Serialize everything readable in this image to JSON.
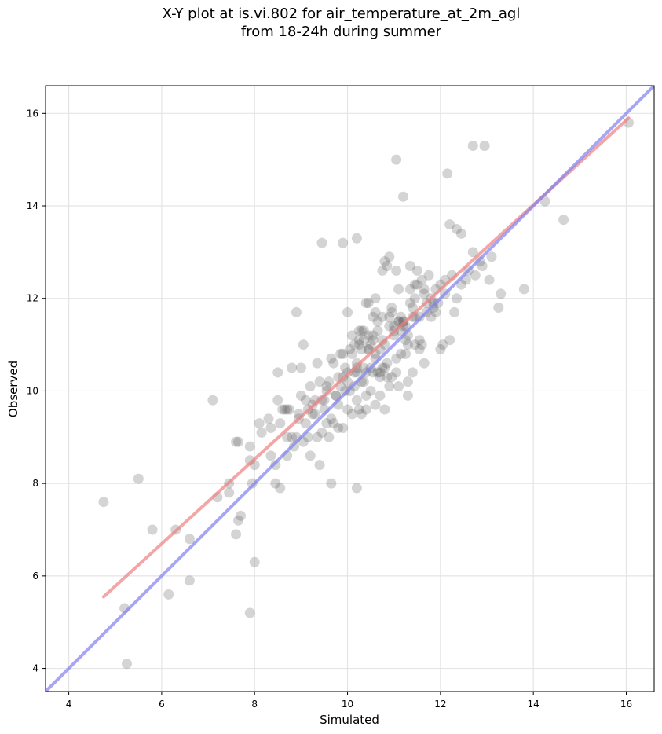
{
  "chart_data": {
    "type": "scatter",
    "title_lines": [
      "X-Y plot at is.vi.802 for air_temperature_at_2m_agl",
      "from 18-24h during summer"
    ],
    "xlabel": "Simulated",
    "ylabel": "Observed",
    "xlim": [
      3.5,
      16.6
    ],
    "ylim": [
      3.5,
      16.6
    ],
    "xticks": [
      4,
      6,
      8,
      10,
      12,
      14,
      16
    ],
    "yticks": [
      4,
      6,
      8,
      10,
      12,
      14,
      16
    ],
    "grid": true,
    "colors": {
      "points": "#555555",
      "fit_line": "#f08080",
      "identity_line": "#8080f0"
    },
    "fit_line": {
      "x": [
        4.75,
        16.05
      ],
      "y": [
        5.55,
        15.9
      ]
    },
    "identity_line": {
      "x": [
        3.5,
        16.6
      ],
      "y": [
        3.5,
        16.6
      ]
    },
    "points": {
      "x": [
        4.75,
        5.5,
        5.2,
        5.25,
        5.8,
        6.15,
        6.3,
        6.6,
        6.6,
        7.1,
        7.2,
        7.45,
        7.45,
        7.6,
        7.65,
        7.6,
        7.65,
        7.7,
        7.9,
        7.9,
        7.95,
        8.0,
        8.0,
        7.9,
        10.2,
        9.65,
        9.45,
        9.9,
        10.2,
        11.05,
        11.2,
        12.15,
        12.2,
        12.35,
        12.45,
        12.7,
        12.9,
        13.25,
        13.8,
        14.25,
        14.65,
        16.05,
        12.7,
        12.95,
        8.1,
        8.15,
        8.3,
        8.35,
        8.45,
        8.5,
        8.55,
        8.6,
        8.7,
        8.75,
        8.8,
        8.85,
        8.9,
        8.95,
        8.5,
        8.8,
        8.9,
        9.0,
        9.05,
        8.45,
        8.55,
        8.7,
        9.1,
        9.15,
        9.2,
        9.25,
        9.3,
        9.35,
        9.4,
        9.45,
        9.5,
        9.55,
        9.6,
        9.65,
        9.7,
        9.75,
        9.8,
        9.85,
        9.9,
        9.95,
        9.2,
        9.4,
        9.6,
        9.8,
        10.0,
        10.05,
        10.1,
        10.15,
        10.2,
        10.25,
        10.3,
        10.35,
        10.4,
        10.45,
        10.5,
        10.55,
        10.6,
        10.65,
        10.7,
        10.75,
        10.8,
        10.85,
        10.9,
        10.95,
        10.1,
        10.3,
        10.5,
        10.7,
        10.9,
        10.2,
        10.4,
        10.6,
        10.8,
        10.0,
        10.3,
        10.6,
        10.9,
        10.15,
        10.45,
        10.75,
        10.25,
        10.55,
        10.85,
        10.35,
        11.0,
        11.05,
        11.1,
        11.15,
        11.2,
        11.25,
        11.3,
        11.35,
        11.4,
        11.45,
        11.5,
        11.55,
        11.6,
        11.65,
        11.7,
        11.75,
        11.8,
        11.85,
        11.9,
        11.95,
        11.0,
        11.2,
        11.4,
        11.6,
        11.1,
        11.3,
        11.5,
        11.7,
        11.05,
        11.25,
        11.45,
        11.15,
        11.35,
        11.55,
        12.0,
        12.05,
        12.1,
        12.25,
        12.3,
        12.35,
        12.6,
        12.85,
        13.05,
        12.0,
        11.9,
        12.2,
        9.0,
        9.3,
        9.7,
        9.9,
        10.1,
        10.4,
        10.8,
        11.3,
        9.5,
        9.8,
        10.0,
        10.3,
        10.6,
        11.1,
        11.4,
        8.7,
        9.1,
        9.45,
        10.2,
        10.7,
        9.55,
        9.75,
        9.95,
        10.15,
        10.35,
        10.55,
        10.75,
        10.95,
        11.15,
        9.35,
        9.65,
        9.85,
        10.05,
        10.25,
        10.45,
        10.65,
        10.85,
        11.05,
        11.25,
        11.45,
        10.6,
        10.8,
        11.0,
        11.2,
        10.4,
        10.9,
        11.3,
        10.2,
        10.7,
        11.1,
        10.5,
        10.0,
        9.9,
        10.35,
        10.65,
        10.95,
        11.35,
        11.65,
        12.1,
        11.8,
        8.95,
        9.25,
        9.05,
        9.55,
        9.15,
        8.65,
        8.35,
        10.45,
        10.75,
        11.55,
        11.85,
        12.45,
        12.75,
        12.55,
        13.1,
        13.3,
        11.45,
        11.65,
        10.55,
        10.25
      ],
      "y": [
        7.6,
        8.1,
        5.3,
        4.1,
        7.0,
        5.6,
        7.0,
        6.8,
        5.9,
        9.8,
        7.7,
        7.8,
        8.0,
        8.9,
        7.2,
        6.9,
        8.9,
        7.3,
        8.8,
        5.2,
        8.0,
        6.3,
        8.4,
        8.5,
        7.9,
        8.0,
        13.2,
        13.2,
        13.3,
        15.0,
        14.2,
        14.7,
        13.6,
        13.5,
        13.4,
        13.0,
        12.7,
        11.8,
        12.2,
        14.1,
        13.7,
        15.8,
        15.3,
        15.3,
        9.3,
        9.1,
        9.4,
        8.6,
        8.0,
        9.8,
        9.3,
        9.6,
        9.0,
        9.6,
        9.0,
        8.8,
        9.0,
        9.4,
        10.4,
        10.5,
        11.7,
        10.5,
        11.0,
        8.4,
        7.9,
        8.6,
        9.8,
        9.6,
        10.1,
        9.5,
        9.8,
        9.0,
        10.2,
        9.8,
        9.6,
        10.0,
        10.2,
        9.4,
        10.6,
        9.9,
        10.3,
        10.1,
        10.8,
        10.5,
        8.6,
        8.4,
        9.0,
        9.2,
        10.4,
        10.0,
        10.8,
        11.0,
        10.6,
        11.1,
        10.2,
        11.3,
        10.4,
        10.9,
        11.0,
        11.2,
        10.7,
        11.5,
        10.3,
        11.1,
        11.0,
        10.6,
        11.4,
        11.8,
        11.2,
        11.3,
        10.5,
        10.4,
        11.6,
        10.4,
        11.9,
        12.0,
        12.8,
        11.7,
        10.9,
        11.7,
        12.9,
        10.1,
        11.9,
        12.6,
        9.6,
        11.6,
        12.7,
        10.5,
        11.3,
        12.6,
        11.5,
        11.6,
        11.5,
        11.4,
        11.0,
        12.2,
        11.8,
        12.3,
        12.6,
        11.1,
        12.4,
        10.6,
        11.7,
        12.5,
        11.6,
        11.8,
        12.2,
        11.9,
        11.4,
        11.5,
        11.6,
        11.0,
        12.2,
        11.2,
        12.3,
        11.9,
        10.4,
        10.8,
        12.0,
        11.3,
        12.7,
        10.9,
        12.3,
        11.0,
        12.4,
        12.5,
        11.7,
        12.0,
        12.6,
        12.8,
        12.4,
        10.9,
        11.7,
        11.1,
        9.9,
        9.5,
        9.3,
        9.2,
        9.5,
        9.6,
        9.6,
        9.9,
        9.8,
        9.7,
        9.6,
        9.5,
        9.7,
        10.1,
        10.4,
        9.6,
        9.3,
        9.1,
        9.8,
        9.9,
        10.1,
        9.9,
        10.0,
        10.4,
        10.2,
        10.4,
        10.5,
        10.3,
        10.8,
        10.6,
        10.7,
        10.8,
        10.9,
        11.0,
        11.2,
        10.4,
        10.3,
        10.7,
        11.1,
        11.0,
        10.8,
        10.5,
        11.2,
        11.4,
        9.9,
        10.1,
        10.2,
        10.5,
        10.9,
        11.5,
        10.0,
        10.2,
        10.3,
        11.1,
        11.3,
        11.7,
        11.9,
        12.2,
        12.1,
        12.0,
        9.5,
        9.7,
        8.9,
        9.3,
        9.0,
        9.6,
        9.2,
        10.9,
        11.6,
        11.6,
        11.9,
        12.3,
        12.5,
        12.4,
        12.9,
        12.1,
        11.6,
        12.1,
        11.1,
        11.3
      ]
    }
  }
}
